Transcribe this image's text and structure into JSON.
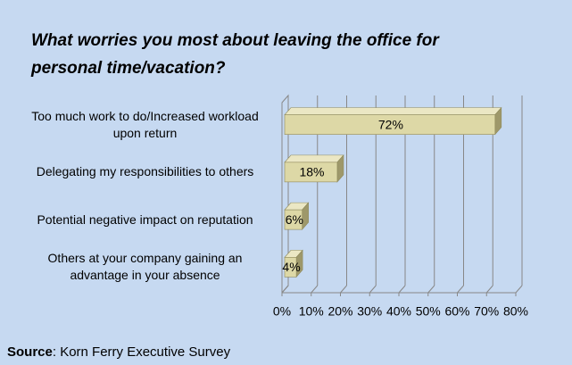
{
  "chart_data": {
    "type": "bar3d_horizontal",
    "title": "What worries you most about leaving the office for personal time/vacation?",
    "categories": [
      "Too much work to do/Increased workload upon return",
      "Delegating my responsibilities to others",
      "Potential negative impact on reputation",
      "Others at your company gaining an advantage in your absence"
    ],
    "values": [
      72,
      18,
      6,
      4
    ],
    "value_labels": [
      "72%",
      "18%",
      "6%",
      "4%"
    ],
    "color": "#ddd8a6",
    "xlim": [
      0,
      80
    ],
    "xticks": [
      {
        "value": 0,
        "label": "0%"
      },
      {
        "value": 10,
        "label": "10%"
      },
      {
        "value": 20,
        "label": "20%"
      },
      {
        "value": 30,
        "label": "30%"
      },
      {
        "value": 40,
        "label": "40%"
      },
      {
        "value": 50,
        "label": "50%"
      },
      {
        "value": 60,
        "label": "60%"
      },
      {
        "value": 70,
        "label": "70%"
      },
      {
        "value": 80,
        "label": "80%"
      }
    ],
    "grid": true,
    "source": {
      "label": "Source",
      "text": ": Korn Ferry Executive Survey"
    }
  }
}
